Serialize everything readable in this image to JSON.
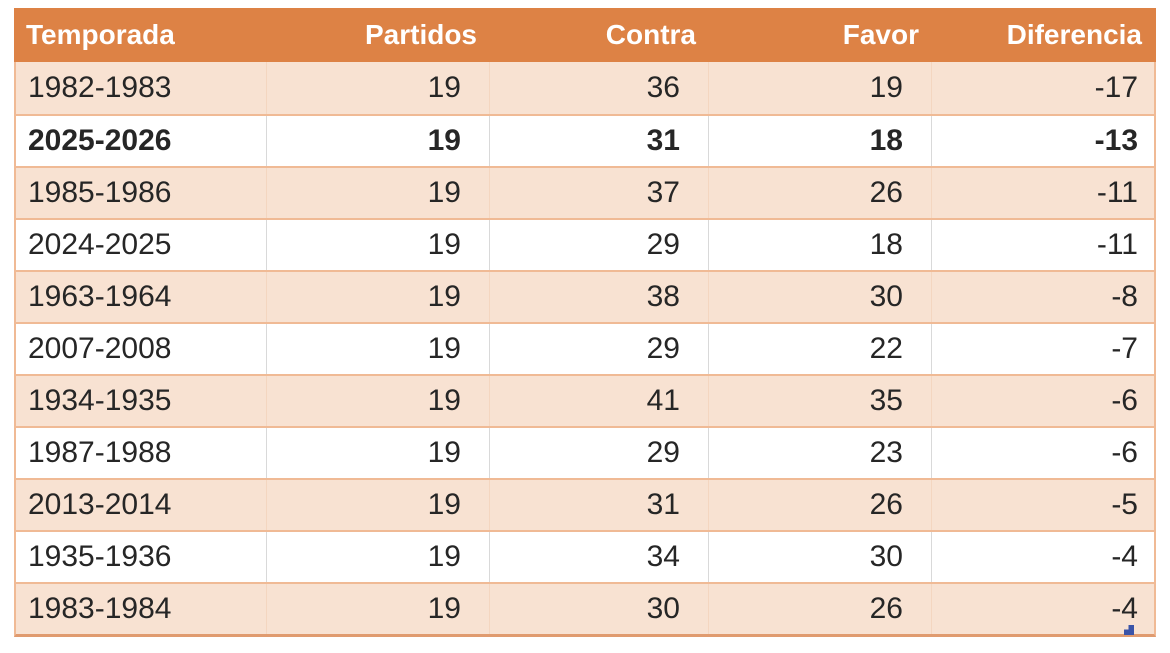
{
  "chart_data": {
    "type": "table",
    "title": "",
    "columns": [
      "Temporada",
      "Partidos",
      "Contra",
      "Favor",
      "Diferencia"
    ],
    "rows": [
      {
        "temporada": "1982-1983",
        "partidos": 19,
        "contra": 36,
        "favor": 19,
        "diferencia": -17,
        "bold": false,
        "shaded": true
      },
      {
        "temporada": "2025-2026",
        "partidos": 19,
        "contra": 31,
        "favor": 18,
        "diferencia": -13,
        "bold": true,
        "shaded": false
      },
      {
        "temporada": "1985-1986",
        "partidos": 19,
        "contra": 37,
        "favor": 26,
        "diferencia": -11,
        "bold": false,
        "shaded": true
      },
      {
        "temporada": "2024-2025",
        "partidos": 19,
        "contra": 29,
        "favor": 18,
        "diferencia": -11,
        "bold": false,
        "shaded": false
      },
      {
        "temporada": "1963-1964",
        "partidos": 19,
        "contra": 38,
        "favor": 30,
        "diferencia": -8,
        "bold": false,
        "shaded": true
      },
      {
        "temporada": "2007-2008",
        "partidos": 19,
        "contra": 29,
        "favor": 22,
        "diferencia": -7,
        "bold": false,
        "shaded": false
      },
      {
        "temporada": "1934-1935",
        "partidos": 19,
        "contra": 41,
        "favor": 35,
        "diferencia": -6,
        "bold": false,
        "shaded": true
      },
      {
        "temporada": "1987-1988",
        "partidos": 19,
        "contra": 29,
        "favor": 23,
        "diferencia": -6,
        "bold": false,
        "shaded": false
      },
      {
        "temporada": "2013-2014",
        "partidos": 19,
        "contra": 31,
        "favor": 26,
        "diferencia": -5,
        "bold": false,
        "shaded": true
      },
      {
        "temporada": "1935-1936",
        "partidos": 19,
        "contra": 34,
        "favor": 30,
        "diferencia": -4,
        "bold": false,
        "shaded": false
      },
      {
        "temporada": "1983-1984",
        "partidos": 19,
        "contra": 30,
        "favor": 26,
        "diferencia": -4,
        "bold": false,
        "shaded": true
      }
    ],
    "highlighted_row": "2025-2026",
    "layout": {
      "header_align": "first column left, others right",
      "data_align": "first column left, others right",
      "row_banding": "alternating peach and white, starting with peach"
    },
    "colors": {
      "header_bg": "#dd8245",
      "header_text": "#ffffff",
      "band_row_bg": "#f8e2d2",
      "plain_row_bg": "#ffffff",
      "row_border": "#f0ba95",
      "bottom_border": "#e09b6f",
      "cell_separator": "#d9d9d9",
      "data_text": "#262626",
      "resize_handle": "#3b54a8"
    }
  }
}
